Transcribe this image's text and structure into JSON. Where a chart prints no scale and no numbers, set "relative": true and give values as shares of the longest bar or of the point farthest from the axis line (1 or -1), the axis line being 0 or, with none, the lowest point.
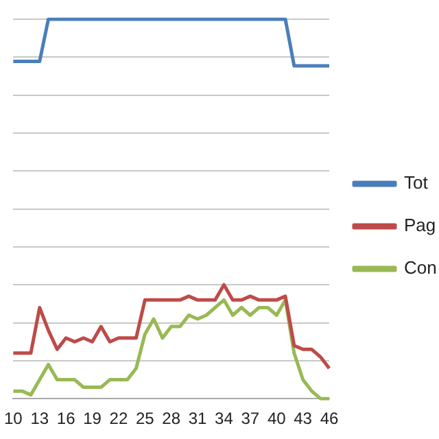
{
  "chart_data": {
    "type": "line",
    "relative": true,
    "grid": "y",
    "legend": "right",
    "marker": "none",
    "line_style": "solid",
    "categories": [
      "10",
      null,
      null,
      "13",
      null,
      null,
      "16",
      null,
      null,
      "19",
      null,
      null,
      "22",
      null,
      null,
      "25",
      null,
      null,
      "28",
      null,
      null,
      "31",
      null,
      null,
      "34",
      null,
      null,
      "37",
      null,
      null,
      "40",
      null,
      null,
      "43",
      null,
      null,
      "46"
    ],
    "series": [
      {
        "name": "Tot",
        "color": "#4a7ebb",
        "values": [
          0.889,
          0.889,
          0.889,
          0.889,
          1,
          1,
          1,
          1,
          1,
          1,
          1,
          1,
          1,
          1,
          1,
          1,
          1,
          1,
          1,
          1,
          1,
          1,
          1,
          1,
          1,
          1,
          1,
          1,
          1,
          1,
          1,
          1,
          0.877,
          0.877,
          0.877,
          0.877,
          0.877
        ]
      },
      {
        "name": "Pag",
        "color": "#be4b48",
        "values": [
          0.12,
          0.12,
          0.12,
          0.24,
          0.18,
          0.13,
          0.16,
          0.15,
          0.16,
          0.15,
          0.19,
          0.15,
          0.16,
          0.16,
          0.16,
          0.26,
          0.26,
          0.26,
          0.26,
          0.26,
          0.27,
          0.26,
          0.26,
          0.26,
          0.3,
          0.26,
          0.26,
          0.27,
          0.26,
          0.26,
          0.26,
          0.27,
          0.14,
          0.13,
          0.13,
          0.11,
          0.08
        ]
      },
      {
        "name": "Con",
        "color": "#98b954",
        "values": [
          0.02,
          0.02,
          0.01,
          0.05,
          0.09,
          0.05,
          0.05,
          0.05,
          0.03,
          0.03,
          0.03,
          0.05,
          0.05,
          0.05,
          0.08,
          0.17,
          0.21,
          0.16,
          0.19,
          0.19,
          0.22,
          0.21,
          0.22,
          0.24,
          0.26,
          0.22,
          0.24,
          0.22,
          0.24,
          0.24,
          0.22,
          0.26,
          0.12,
          0.05,
          0.02,
          0,
          0
        ]
      }
    ]
  }
}
